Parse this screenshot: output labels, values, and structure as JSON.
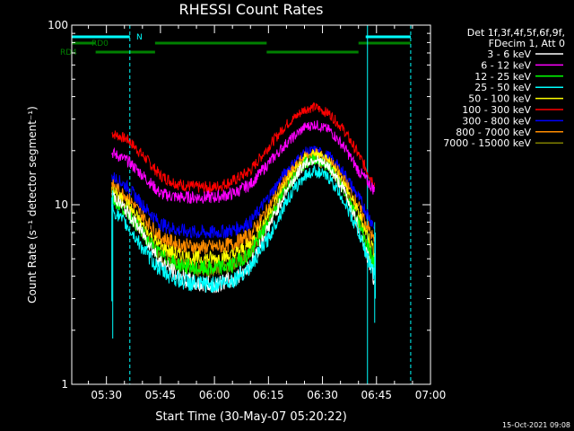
{
  "chart_data": {
    "type": "line",
    "title": "RHESSI Count Rates",
    "xlabel": "Start Time (30-May-07 05:20:22)",
    "ylabel": "Count Rate (s⁻¹ detector segment⁻¹)",
    "y_scale": "log",
    "ylim": [
      1,
      100
    ],
    "xlim": [
      "05:20:22",
      "07:00:00"
    ],
    "x_ticks": [
      "05:30",
      "05:45",
      "06:00",
      "06:15",
      "06:30",
      "06:45",
      "07:00"
    ],
    "y_ticks": [
      "1",
      "10",
      "100"
    ],
    "grid": false,
    "legend_placement": "right",
    "legend_header": [
      "Det 1f,3f,4f,5f,6f,9f,",
      "FDecim 1, Att 0"
    ],
    "series": [
      {
        "name": "3 - 6 keV",
        "color": "#ffffff",
        "points": [
          [
            "05:31:30",
            11.5
          ],
          [
            "05:36:00",
            9.0
          ],
          [
            "05:41:00",
            6.5
          ],
          [
            "05:45:00",
            4.8
          ],
          [
            "05:50:00",
            4.0
          ],
          [
            "05:55:00",
            3.6
          ],
          [
            "06:00:00",
            3.6
          ],
          [
            "06:05:00",
            3.8
          ],
          [
            "06:10:00",
            4.6
          ],
          [
            "06:15:00",
            7.5
          ],
          [
            "06:20:00",
            12.0
          ],
          [
            "06:25:00",
            17.0
          ],
          [
            "06:28:00",
            18.0
          ],
          [
            "06:32:00",
            16.0
          ],
          [
            "06:36:00",
            12.0
          ],
          [
            "06:40:00",
            7.5
          ],
          [
            "06:44:30",
            3.8
          ]
        ]
      },
      {
        "name": "6 - 12 keV",
        "color": "#ff00ff",
        "points": [
          [
            "05:31:30",
            19.5
          ],
          [
            "05:36:00",
            17.5
          ],
          [
            "05:41:00",
            14.0
          ],
          [
            "05:45:00",
            11.5
          ],
          [
            "05:50:00",
            11.0
          ],
          [
            "05:55:00",
            11.0
          ],
          [
            "06:00:00",
            11.0
          ],
          [
            "06:05:00",
            11.5
          ],
          [
            "06:10:00",
            13.0
          ],
          [
            "06:15:00",
            17.0
          ],
          [
            "06:20:00",
            22.0
          ],
          [
            "06:25:00",
            27.0
          ],
          [
            "06:28:00",
            28.0
          ],
          [
            "06:32:00",
            26.0
          ],
          [
            "06:36:00",
            21.0
          ],
          [
            "06:40:00",
            15.5
          ],
          [
            "06:44:30",
            12.0
          ]
        ]
      },
      {
        "name": "12 - 25 keV",
        "color": "#00ff00",
        "points": [
          [
            "05:31:30",
            10.8
          ],
          [
            "05:36:00",
            9.0
          ],
          [
            "05:41:00",
            6.5
          ],
          [
            "05:45:00",
            5.2
          ],
          [
            "05:50:00",
            4.6
          ],
          [
            "05:55:00",
            4.4
          ],
          [
            "06:00:00",
            4.4
          ],
          [
            "06:05:00",
            4.6
          ],
          [
            "06:10:00",
            5.4
          ],
          [
            "06:15:00",
            8.0
          ],
          [
            "06:20:00",
            12.5
          ],
          [
            "06:25:00",
            17.0
          ],
          [
            "06:28:00",
            18.0
          ],
          [
            "06:32:00",
            16.0
          ],
          [
            "06:36:00",
            12.0
          ],
          [
            "06:40:00",
            8.0
          ],
          [
            "06:44:30",
            4.6
          ]
        ]
      },
      {
        "name": "25 - 50 keV",
        "color": "#00ffff",
        "points": [
          [
            "05:31:30",
            9.5
          ],
          [
            "05:36:00",
            7.5
          ],
          [
            "05:41:00",
            5.4
          ],
          [
            "05:45:00",
            4.3
          ],
          [
            "05:50:00",
            3.8
          ],
          [
            "05:55:00",
            3.6
          ],
          [
            "06:00:00",
            3.6
          ],
          [
            "06:05:00",
            3.8
          ],
          [
            "06:10:00",
            4.5
          ],
          [
            "06:15:00",
            6.5
          ],
          [
            "06:20:00",
            10.5
          ],
          [
            "06:25:00",
            14.5
          ],
          [
            "06:28:00",
            15.5
          ],
          [
            "06:32:00",
            14.0
          ],
          [
            "06:36:00",
            10.5
          ],
          [
            "06:40:00",
            7.0
          ],
          [
            "06:44:30",
            4.0
          ]
        ]
      },
      {
        "name": "50 - 100 keV",
        "color": "#ffff00",
        "points": [
          [
            "05:31:30",
            12.0
          ],
          [
            "05:36:00",
            10.0
          ],
          [
            "05:41:00",
            7.2
          ],
          [
            "05:45:00",
            5.8
          ],
          [
            "05:50:00",
            5.2
          ],
          [
            "05:55:00",
            5.0
          ],
          [
            "06:00:00",
            5.0
          ],
          [
            "06:05:00",
            5.2
          ],
          [
            "06:10:00",
            6.0
          ],
          [
            "06:15:00",
            8.8
          ],
          [
            "06:20:00",
            13.5
          ],
          [
            "06:25:00",
            18.0
          ],
          [
            "06:28:00",
            19.0
          ],
          [
            "06:32:00",
            17.0
          ],
          [
            "06:36:00",
            13.0
          ],
          [
            "06:40:00",
            9.0
          ],
          [
            "06:44:30",
            5.4
          ]
        ]
      },
      {
        "name": "100 - 300 keV",
        "color": "#ff0000",
        "points": [
          [
            "05:31:30",
            25.0
          ],
          [
            "05:36:00",
            23.0
          ],
          [
            "05:41:00",
            18.0
          ],
          [
            "05:45:00",
            14.5
          ],
          [
            "05:50:00",
            13.0
          ],
          [
            "05:55:00",
            12.5
          ],
          [
            "06:00:00",
            12.5
          ],
          [
            "06:05:00",
            13.5
          ],
          [
            "06:10:00",
            15.5
          ],
          [
            "06:15:00",
            21.0
          ],
          [
            "06:20:00",
            28.0
          ],
          [
            "06:25:00",
            34.0
          ],
          [
            "06:28:00",
            35.0
          ],
          [
            "06:32:00",
            32.0
          ],
          [
            "06:36:00",
            26.0
          ],
          [
            "06:40:00",
            19.0
          ],
          [
            "06:44:30",
            13.0
          ]
        ]
      },
      {
        "name": "300 - 800 keV",
        "color": "#0000ff",
        "points": [
          [
            "05:31:30",
            14.5
          ],
          [
            "05:36:00",
            12.5
          ],
          [
            "05:41:00",
            9.5
          ],
          [
            "05:45:00",
            7.8
          ],
          [
            "05:50:00",
            7.2
          ],
          [
            "05:55:00",
            7.0
          ],
          [
            "06:00:00",
            7.0
          ],
          [
            "06:05:00",
            7.2
          ],
          [
            "06:10:00",
            8.0
          ],
          [
            "06:15:00",
            11.0
          ],
          [
            "06:20:00",
            15.5
          ],
          [
            "06:25:00",
            19.5
          ],
          [
            "06:28:00",
            20.0
          ],
          [
            "06:32:00",
            18.5
          ],
          [
            "06:36:00",
            15.0
          ],
          [
            "06:40:00",
            11.0
          ],
          [
            "06:44:30",
            7.5
          ]
        ]
      },
      {
        "name": "800 - 7000 keV",
        "color": "#ff8c00",
        "points": [
          [
            "05:31:30",
            13.0
          ],
          [
            "05:36:00",
            11.0
          ],
          [
            "05:41:00",
            8.2
          ],
          [
            "05:45:00",
            6.6
          ],
          [
            "05:50:00",
            6.0
          ],
          [
            "05:55:00",
            5.8
          ],
          [
            "06:00:00",
            5.8
          ],
          [
            "06:05:00",
            6.0
          ],
          [
            "06:10:00",
            6.8
          ],
          [
            "06:15:00",
            9.6
          ],
          [
            "06:20:00",
            14.2
          ],
          [
            "06:25:00",
            18.5
          ],
          [
            "06:28:00",
            19.5
          ],
          [
            "06:32:00",
            17.5
          ],
          [
            "06:36:00",
            13.8
          ],
          [
            "06:40:00",
            9.8
          ],
          [
            "06:44:30",
            6.2
          ]
        ]
      },
      {
        "name": "7000 - 15000 keV",
        "color": "#808000",
        "points": [
          [
            "05:31:30",
            11.0
          ],
          [
            "05:36:00",
            9.2
          ],
          [
            "05:41:00",
            6.7
          ],
          [
            "05:45:00",
            5.2
          ],
          [
            "05:50:00",
            4.6
          ],
          [
            "05:55:00",
            4.4
          ],
          [
            "06:00:00",
            4.4
          ],
          [
            "06:05:00",
            4.6
          ],
          [
            "06:10:00",
            5.4
          ],
          [
            "06:15:00",
            8.0
          ],
          [
            "06:20:00",
            12.5
          ],
          [
            "06:25:00",
            17.0
          ],
          [
            "06:28:00",
            18.0
          ],
          [
            "06:32:00",
            16.0
          ],
          [
            "06:36:00",
            12.0
          ],
          [
            "06:40:00",
            8.0
          ],
          [
            "06:44:30",
            4.6
          ]
        ]
      }
    ],
    "flag_bars": [
      {
        "label": "N",
        "color": "#00ffff",
        "segments": [
          [
            "05:20:22",
            "05:36:30"
          ],
          [
            "06:42:00",
            "06:54:30"
          ]
        ]
      },
      {
        "label": "RD0",
        "color": "#008000",
        "segments": [
          [
            "05:20:22",
            "05:27:00"
          ],
          [
            "05:43:30",
            "06:14:30"
          ],
          [
            "06:40:00",
            "06:54:30"
          ]
        ]
      },
      {
        "label": "RD4",
        "color": "#008000",
        "segments": [
          [
            "05:27:00",
            "05:43:30"
          ],
          [
            "06:14:30",
            "06:40:00"
          ]
        ]
      }
    ],
    "vertical_markers": [
      {
        "time": "05:20:22",
        "color": "#00ffff",
        "style": "solid"
      },
      {
        "time": "05:36:30",
        "color": "#00ffff",
        "style": "dashed"
      },
      {
        "time": "06:42:30",
        "color": "#00ffff",
        "style": "solid"
      },
      {
        "time": "06:54:30",
        "color": "#00ffff",
        "style": "dashed"
      }
    ]
  },
  "footer": {
    "timestamp": "15-Oct-2021 09:08"
  }
}
